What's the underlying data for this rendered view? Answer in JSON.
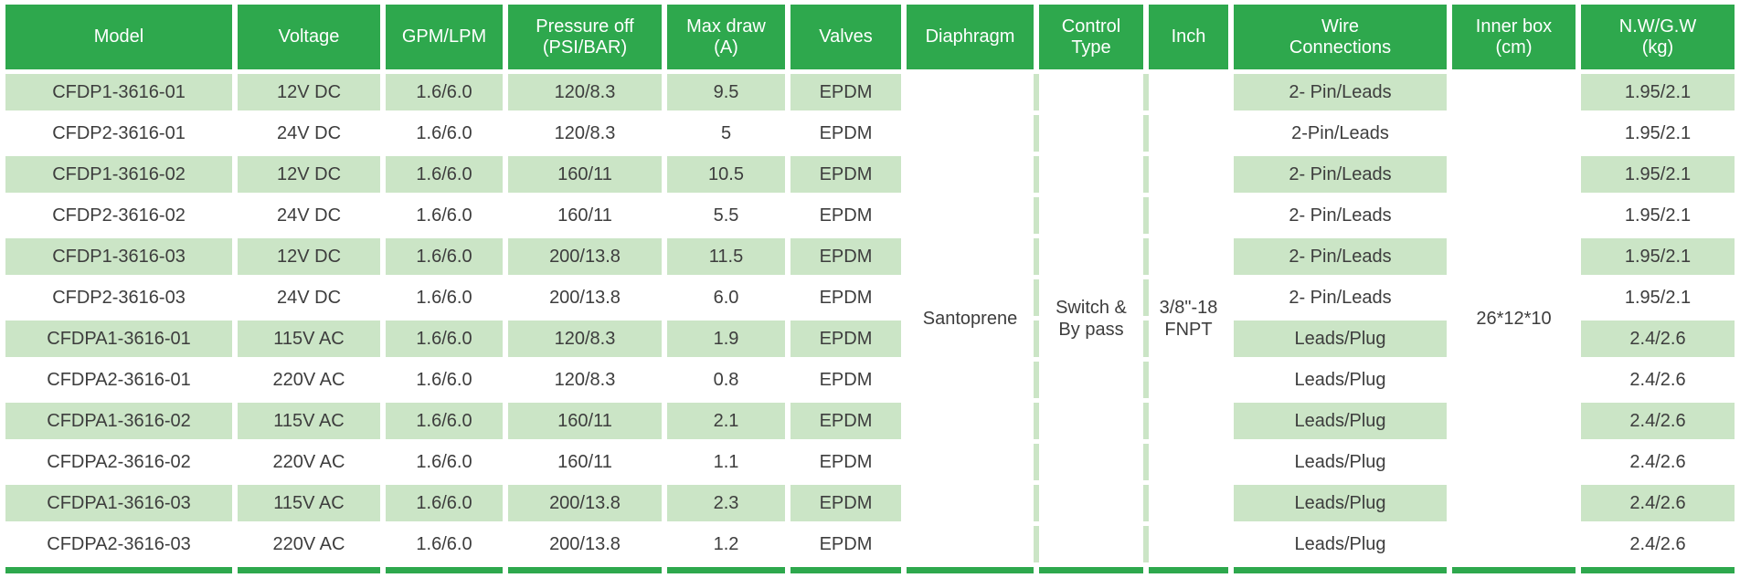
{
  "table": {
    "colors": {
      "header_green": "#2ea84d",
      "row_green": "#cbe5c6",
      "text": "#3d3d3d"
    },
    "columns": [
      {
        "key": "model",
        "label": "Model"
      },
      {
        "key": "voltage",
        "label": "Voltage"
      },
      {
        "key": "gpm_lpm",
        "label": "GPM/LPM"
      },
      {
        "key": "pressure_off",
        "label": "Pressure off\n(PSI/BAR)"
      },
      {
        "key": "max_draw",
        "label": "Max draw\n(A)"
      },
      {
        "key": "valves",
        "label": "Valves"
      },
      {
        "key": "diaphragm",
        "label": "Diaphragm"
      },
      {
        "key": "control_type",
        "label": "Control\nType"
      },
      {
        "key": "inch",
        "label": "Inch"
      },
      {
        "key": "wire_connections",
        "label": "Wire\nConnections"
      },
      {
        "key": "inner_box",
        "label": "Inner box\n(cm)"
      },
      {
        "key": "nw_gw",
        "label": "N.W/G.W\n(kg)"
      }
    ],
    "merged": {
      "diaphragm": "Santoprene",
      "control_type": "Switch &\nBy pass",
      "inch": "3/8\"-18\nFNPT",
      "inner_box": "26*12*10"
    },
    "rows": [
      {
        "model": "CFDP1-3616-01",
        "voltage": "12V DC",
        "gpm_lpm": "1.6/6.0",
        "pressure_off": "120/8.3",
        "max_draw": "9.5",
        "valves": "EPDM",
        "wire_connections": "2- Pin/Leads",
        "nw_gw": "1.95/2.1"
      },
      {
        "model": "CFDP2-3616-01",
        "voltage": "24V DC",
        "gpm_lpm": "1.6/6.0",
        "pressure_off": "120/8.3",
        "max_draw": "5",
        "valves": "EPDM",
        "wire_connections": "2-Pin/Leads",
        "nw_gw": "1.95/2.1"
      },
      {
        "model": "CFDP1-3616-02",
        "voltage": "12V DC",
        "gpm_lpm": "1.6/6.0",
        "pressure_off": "160/11",
        "max_draw": "10.5",
        "valves": "EPDM",
        "wire_connections": "2- Pin/Leads",
        "nw_gw": "1.95/2.1"
      },
      {
        "model": "CFDP2-3616-02",
        "voltage": "24V DC",
        "gpm_lpm": "1.6/6.0",
        "pressure_off": "160/11",
        "max_draw": "5.5",
        "valves": "EPDM",
        "wire_connections": "2- Pin/Leads",
        "nw_gw": "1.95/2.1"
      },
      {
        "model": "CFDP1-3616-03",
        "voltage": "12V DC",
        "gpm_lpm": "1.6/6.0",
        "pressure_off": "200/13.8",
        "max_draw": "11.5",
        "valves": "EPDM",
        "wire_connections": "2- Pin/Leads",
        "nw_gw": "1.95/2.1"
      },
      {
        "model": "CFDP2-3616-03",
        "voltage": "24V DC",
        "gpm_lpm": "1.6/6.0",
        "pressure_off": "200/13.8",
        "max_draw": "6.0",
        "valves": "EPDM",
        "wire_connections": "2- Pin/Leads",
        "nw_gw": "1.95/2.1"
      },
      {
        "model": "CFDPA1-3616-01",
        "voltage": "115V AC",
        "gpm_lpm": "1.6/6.0",
        "pressure_off": "120/8.3",
        "max_draw": "1.9",
        "valves": "EPDM",
        "wire_connections": "Leads/Plug",
        "nw_gw": "2.4/2.6"
      },
      {
        "model": "CFDPA2-3616-01",
        "voltage": "220V AC",
        "gpm_lpm": "1.6/6.0",
        "pressure_off": "120/8.3",
        "max_draw": "0.8",
        "valves": "EPDM",
        "wire_connections": "Leads/Plug",
        "nw_gw": "2.4/2.6"
      },
      {
        "model": "CFDPA1-3616-02",
        "voltage": "115V AC",
        "gpm_lpm": "1.6/6.0",
        "pressure_off": "160/11",
        "max_draw": "2.1",
        "valves": "EPDM",
        "wire_connections": "Leads/Plug",
        "nw_gw": "2.4/2.6"
      },
      {
        "model": "CFDPA2-3616-02",
        "voltage": "220V AC",
        "gpm_lpm": "1.6/6.0",
        "pressure_off": "160/11",
        "max_draw": "1.1",
        "valves": "EPDM",
        "wire_connections": "Leads/Plug",
        "nw_gw": "2.4/2.6"
      },
      {
        "model": "CFDPA1-3616-03",
        "voltage": "115V AC",
        "gpm_lpm": "1.6/6.0",
        "pressure_off": "200/13.8",
        "max_draw": "2.3",
        "valves": "EPDM",
        "wire_connections": "Leads/Plug",
        "nw_gw": "2.4/2.6"
      },
      {
        "model": "CFDPA2-3616-03",
        "voltage": "220V AC",
        "gpm_lpm": "1.6/6.0",
        "pressure_off": "200/13.8",
        "max_draw": "1.2",
        "valves": "EPDM",
        "wire_connections": "Leads/Plug",
        "nw_gw": "2.4/2.6"
      }
    ]
  }
}
